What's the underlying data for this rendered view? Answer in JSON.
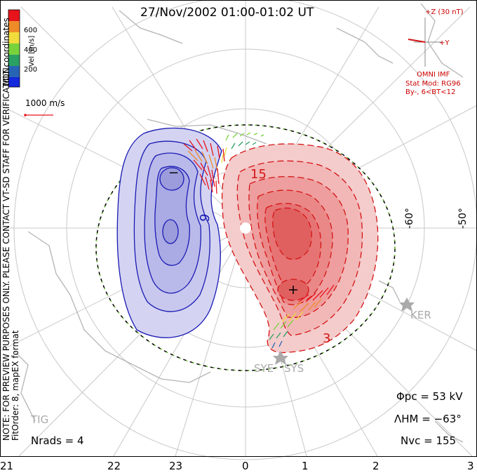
{
  "title": "27/Nov/2002 01:00-01:02 UT",
  "imf": {
    "z_label": "+Z (30 nT)",
    "y_label": "+Y",
    "source": "OMNI IMF",
    "model": "Stat Mod: RG96",
    "condition": "By-, 6<BT<12"
  },
  "colorbar": {
    "title": "Vel [m/s]",
    "ticks": [
      "600",
      "400",
      "200"
    ],
    "colors": [
      "#e8141c",
      "#f08c28",
      "#f0dc3c",
      "#78d23c",
      "#2aa064",
      "#2864b4",
      "#1428dc"
    ]
  },
  "coordinates_label": "MLT coordinates",
  "reference_vector_label": "1000 m/s",
  "latitude_labels": {
    "lat60": "-60°",
    "lat50": "-50°"
  },
  "mlt_labels": [
    "21",
    "22",
    "23",
    "0",
    "1",
    "2",
    "3"
  ],
  "contour_labels": {
    "neg": "−",
    "neg_value": "9",
    "pos": "15",
    "pos_low": "3",
    "max_marker": "+"
  },
  "stations": {
    "ker": "KER",
    "sye": "SYE",
    "sys": "SYS",
    "tig": "TIG"
  },
  "stats": {
    "phi_pc": "Φpc = 53 kV",
    "lambda_hm": "ΛHM = −63°",
    "n_vc": "Nvc = 155",
    "n_rads": "Nrads = 4"
  },
  "notes": {
    "preview": "NOTE: FOR PREVIEW PURPOSES ONLY. PLEASE CONTACT VT-SD STAFF FOR VERIFICATION.",
    "fit_order": "FitOrder: 8, mapEX format"
  },
  "colors": {
    "negative_fill": "#c8c8ec",
    "negative_line": "#1a1ab4",
    "positive_fill": "#f0a0a0",
    "positive_line": "#d41414",
    "grid": "#c8c8c8",
    "coast": "#b4b4b4"
  }
}
